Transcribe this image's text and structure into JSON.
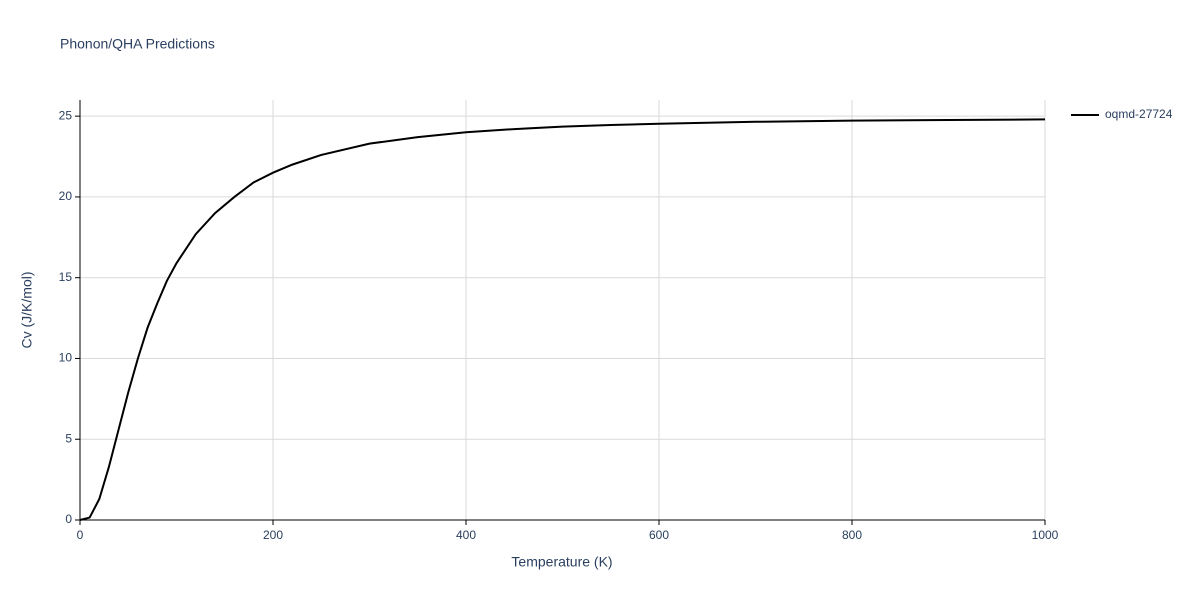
{
  "chart_data": {
    "type": "line",
    "title": "Phonon/QHA Predictions",
    "x_label": "Temperature (K)",
    "y_label": "Cv (J/K/mol)",
    "x": [
      0,
      10,
      20,
      30,
      40,
      50,
      60,
      70,
      80,
      90,
      100,
      120,
      140,
      160,
      180,
      200,
      220,
      250,
      300,
      350,
      400,
      450,
      500,
      550,
      600,
      700,
      800,
      900,
      1000
    ],
    "series": [
      {
        "name": "oqmd-27724",
        "color": "#000000",
        "values": [
          0,
          0.15,
          1.3,
          3.3,
          5.6,
          7.9,
          10.0,
          11.9,
          13.4,
          14.8,
          15.9,
          17.7,
          19.0,
          20.0,
          20.9,
          21.5,
          22.0,
          22.6,
          23.3,
          23.7,
          24.0,
          24.2,
          24.35,
          24.45,
          24.53,
          24.65,
          24.72,
          24.76,
          24.8
        ]
      }
    ],
    "xlim": [
      0,
      1000
    ],
    "xticks": [
      0,
      200,
      400,
      600,
      800,
      1000
    ],
    "ylim": [
      0,
      26
    ],
    "yticks": [
      0,
      5,
      10,
      15,
      20,
      25
    ],
    "grid": true,
    "legend": "right"
  }
}
